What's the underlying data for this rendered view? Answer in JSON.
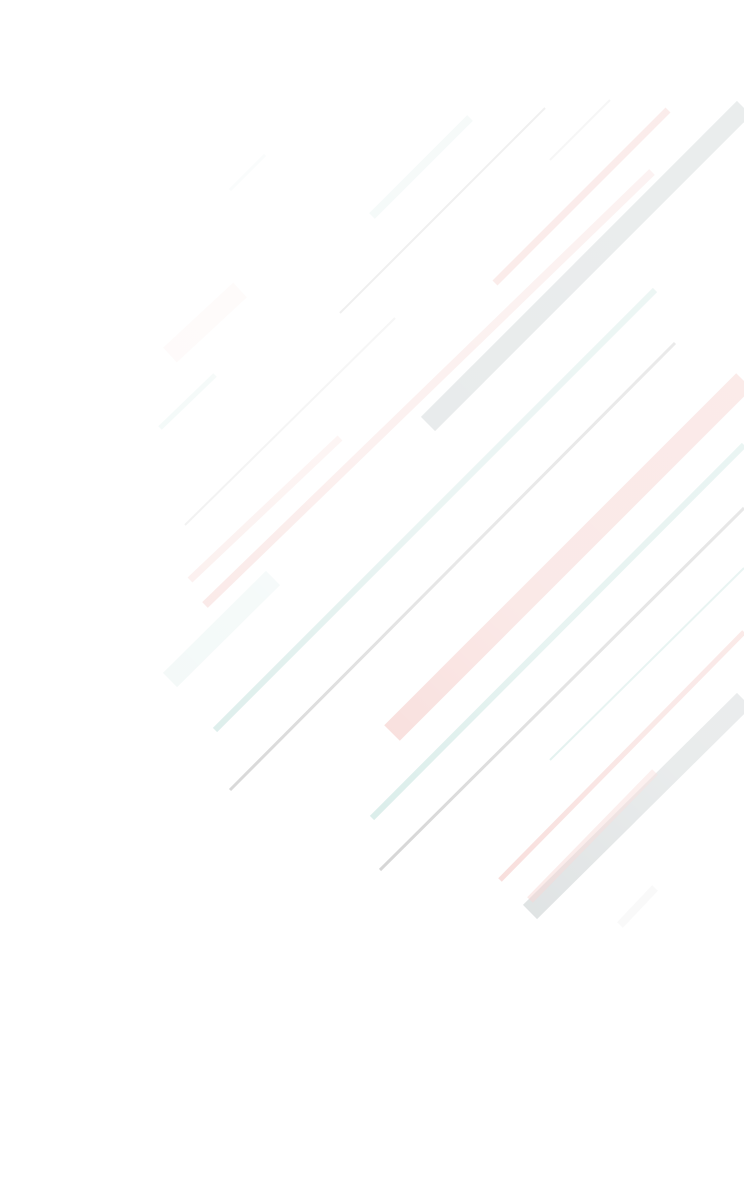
{
  "background": {
    "base_color": "#ffffff",
    "stripe_colors": {
      "gray": "#c9d0d1",
      "pink": "#f4c8c4",
      "teal": "#c6e3de",
      "line_gray": "#bfbfbf"
    }
  }
}
